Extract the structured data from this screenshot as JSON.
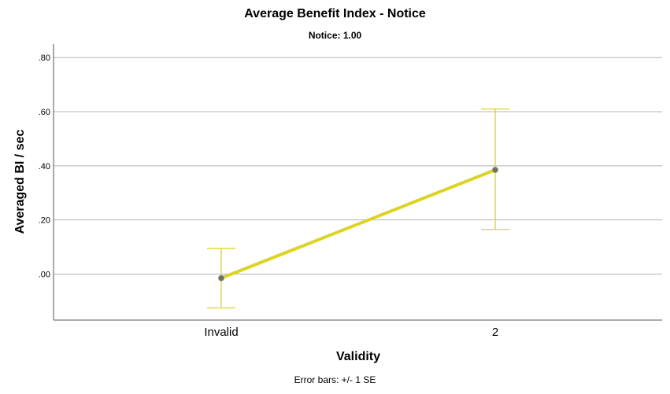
{
  "chart_data": {
    "type": "line",
    "title": "Average Benefit Index - Notice",
    "subtitle": "Notice: 1.00",
    "xlabel": "Validity",
    "ylabel": "Averaged BI / sec",
    "footnote": "Error bars: +/- 1 SE",
    "categories": [
      "Invalid",
      "2"
    ],
    "series": [
      {
        "values": [
          -0.015,
          0.385
        ],
        "error_low": [
          -0.125,
          0.165
        ],
        "error_high": [
          0.095,
          0.61
        ],
        "color": "#dcd424"
      }
    ],
    "ylim": [
      -0.17,
      0.85
    ],
    "yticks": [
      0.0,
      0.2,
      0.4,
      0.6,
      0.8
    ],
    "ytick_labels": [
      ".00",
      ".20",
      ".40",
      ".60",
      ".80"
    ],
    "grid": true,
    "colors": {
      "line": "#dcd424",
      "marker": "#707060",
      "grid": "#b4b4b4",
      "axis": "#555555"
    }
  }
}
